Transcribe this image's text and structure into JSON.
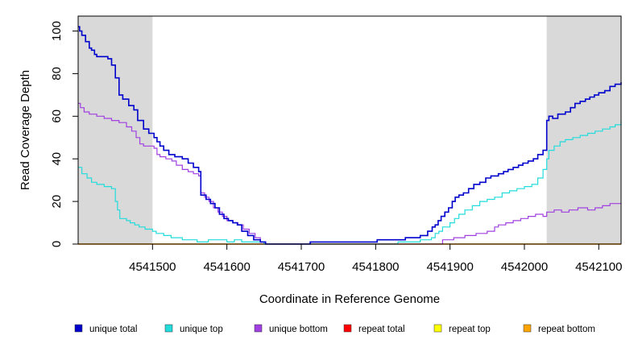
{
  "chart_data": {
    "type": "line",
    "title": "",
    "xlabel": "Coordinate in Reference Genome",
    "ylabel": "Read Coverage Depth",
    "xlim": [
      4541400,
      4542130
    ],
    "ylim": [
      0,
      107
    ],
    "x_ticks": [
      4541500,
      4541600,
      4541700,
      4541800,
      4541900,
      4542000,
      4542100
    ],
    "y_ticks": [
      0,
      20,
      40,
      60,
      80,
      100
    ],
    "shaded_regions": [
      [
        4541400,
        4541500
      ],
      [
        4542030,
        4542130
      ]
    ],
    "shade_color": "#d9d9d9",
    "legend_position": "bottom",
    "series": [
      {
        "name": "unique total",
        "color": "#0000cd",
        "points": [
          [
            4541400,
            102
          ],
          [
            4541402,
            100
          ],
          [
            4541405,
            98
          ],
          [
            4541410,
            95
          ],
          [
            4541415,
            92
          ],
          [
            4541418,
            91
          ],
          [
            4541422,
            89
          ],
          [
            4541425,
            88
          ],
          [
            4541440,
            87
          ],
          [
            4541445,
            84
          ],
          [
            4541450,
            78
          ],
          [
            4541455,
            70
          ],
          [
            4541460,
            68
          ],
          [
            4541468,
            65
          ],
          [
            4541475,
            63
          ],
          [
            4541480,
            58
          ],
          [
            4541488,
            54
          ],
          [
            4541495,
            52
          ],
          [
            4541502,
            50
          ],
          [
            4541506,
            48
          ],
          [
            4541510,
            46
          ],
          [
            4541515,
            44
          ],
          [
            4541522,
            42
          ],
          [
            4541530,
            41
          ],
          [
            4541540,
            40
          ],
          [
            4541548,
            38
          ],
          [
            4541555,
            36
          ],
          [
            4541562,
            34
          ],
          [
            4541565,
            23
          ],
          [
            4541572,
            21
          ],
          [
            4541578,
            19
          ],
          [
            4541584,
            17
          ],
          [
            4541590,
            14
          ],
          [
            4541596,
            12
          ],
          [
            4541602,
            11
          ],
          [
            4541608,
            10
          ],
          [
            4541614,
            9
          ],
          [
            4541620,
            6
          ],
          [
            4541628,
            4
          ],
          [
            4541636,
            2
          ],
          [
            4541645,
            1
          ],
          [
            4541652,
            0
          ],
          [
            4541710,
            0
          ],
          [
            4541712,
            1
          ],
          [
            4541800,
            1
          ],
          [
            4541802,
            2
          ],
          [
            4541840,
            3
          ],
          [
            4541860,
            4
          ],
          [
            4541870,
            6
          ],
          [
            4541876,
            8
          ],
          [
            4541880,
            9
          ],
          [
            4541884,
            11
          ],
          [
            4541888,
            13
          ],
          [
            4541893,
            15
          ],
          [
            4541898,
            17
          ],
          [
            4541903,
            20
          ],
          [
            4541907,
            22
          ],
          [
            4541912,
            23
          ],
          [
            4541918,
            24
          ],
          [
            4541925,
            26
          ],
          [
            4541932,
            28
          ],
          [
            4541940,
            29
          ],
          [
            4541948,
            31
          ],
          [
            4541955,
            32
          ],
          [
            4541965,
            33
          ],
          [
            4541972,
            34
          ],
          [
            4541978,
            35
          ],
          [
            4541985,
            36
          ],
          [
            4541992,
            37
          ],
          [
            4541998,
            38
          ],
          [
            4542005,
            39
          ],
          [
            4542012,
            40
          ],
          [
            4542018,
            42
          ],
          [
            4542025,
            44
          ],
          [
            4542030,
            58
          ],
          [
            4542033,
            60
          ],
          [
            4542038,
            59
          ],
          [
            4542045,
            61
          ],
          [
            4542055,
            62
          ],
          [
            4542062,
            64
          ],
          [
            4542068,
            66
          ],
          [
            4542075,
            67
          ],
          [
            4542082,
            68
          ],
          [
            4542088,
            69
          ],
          [
            4542094,
            70
          ],
          [
            4542100,
            71
          ],
          [
            4542108,
            72
          ],
          [
            4542115,
            74
          ],
          [
            4542122,
            75
          ],
          [
            4542130,
            76
          ]
        ]
      },
      {
        "name": "unique top",
        "color": "#22dcdc",
        "points": [
          [
            4541400,
            36
          ],
          [
            4541405,
            33
          ],
          [
            4541412,
            31
          ],
          [
            4541418,
            29
          ],
          [
            4541425,
            28
          ],
          [
            4541435,
            27
          ],
          [
            4541445,
            26
          ],
          [
            4541450,
            20
          ],
          [
            4541453,
            16
          ],
          [
            4541456,
            12
          ],
          [
            4541465,
            11
          ],
          [
            4541470,
            10
          ],
          [
            4541476,
            9
          ],
          [
            4541482,
            8
          ],
          [
            4541490,
            7
          ],
          [
            4541500,
            6
          ],
          [
            4541505,
            5
          ],
          [
            4541515,
            4
          ],
          [
            4541525,
            3
          ],
          [
            4541540,
            2
          ],
          [
            4541560,
            1
          ],
          [
            4541570,
            1
          ],
          [
            4541575,
            2
          ],
          [
            4541580,
            2
          ],
          [
            4541600,
            1
          ],
          [
            4541610,
            2
          ],
          [
            4541620,
            1
          ],
          [
            4541650,
            0
          ],
          [
            4541820,
            0
          ],
          [
            4541830,
            1
          ],
          [
            4541860,
            2
          ],
          [
            4541875,
            3
          ],
          [
            4541880,
            5
          ],
          [
            4541885,
            6
          ],
          [
            4541890,
            8
          ],
          [
            4541900,
            10
          ],
          [
            4541906,
            12
          ],
          [
            4541912,
            14
          ],
          [
            4541920,
            16
          ],
          [
            4541930,
            18
          ],
          [
            4541940,
            20
          ],
          [
            4541950,
            21
          ],
          [
            4541960,
            22
          ],
          [
            4541970,
            24
          ],
          [
            4541980,
            25
          ],
          [
            4541990,
            26
          ],
          [
            4542000,
            27
          ],
          [
            4542010,
            28
          ],
          [
            4542018,
            31
          ],
          [
            4542025,
            35
          ],
          [
            4542030,
            40
          ],
          [
            4542033,
            44
          ],
          [
            4542040,
            46
          ],
          [
            4542048,
            48
          ],
          [
            4542055,
            49
          ],
          [
            4542065,
            50
          ],
          [
            4542075,
            51
          ],
          [
            4542085,
            52
          ],
          [
            4542095,
            53
          ],
          [
            4542105,
            54
          ],
          [
            4542115,
            55
          ],
          [
            4542122,
            56
          ],
          [
            4542130,
            58
          ]
        ]
      },
      {
        "name": "unique bottom",
        "color": "#a040e0",
        "points": [
          [
            4541400,
            66
          ],
          [
            4541403,
            64
          ],
          [
            4541408,
            62
          ],
          [
            4541415,
            61
          ],
          [
            4541425,
            60
          ],
          [
            4541435,
            59
          ],
          [
            4541445,
            58
          ],
          [
            4541455,
            57
          ],
          [
            4541465,
            55
          ],
          [
            4541472,
            53
          ],
          [
            4541478,
            50
          ],
          [
            4541483,
            47
          ],
          [
            4541488,
            46
          ],
          [
            4541496,
            46
          ],
          [
            4541502,
            45
          ],
          [
            4541506,
            42
          ],
          [
            4541510,
            41
          ],
          [
            4541518,
            40
          ],
          [
            4541526,
            39
          ],
          [
            4541532,
            37
          ],
          [
            4541540,
            35
          ],
          [
            4541548,
            34
          ],
          [
            4541555,
            33
          ],
          [
            4541562,
            32
          ],
          [
            4541565,
            24
          ],
          [
            4541570,
            22
          ],
          [
            4541576,
            20
          ],
          [
            4541582,
            17
          ],
          [
            4541588,
            15
          ],
          [
            4541594,
            13
          ],
          [
            4541600,
            11
          ],
          [
            4541608,
            10
          ],
          [
            4541615,
            9
          ],
          [
            4541622,
            7
          ],
          [
            4541630,
            5
          ],
          [
            4541638,
            3
          ],
          [
            4541645,
            1
          ],
          [
            4541652,
            0
          ],
          [
            4541880,
            0
          ],
          [
            4541890,
            2
          ],
          [
            4541905,
            3
          ],
          [
            4541920,
            4
          ],
          [
            4541935,
            5
          ],
          [
            4541950,
            6
          ],
          [
            4541960,
            8
          ],
          [
            4541965,
            9
          ],
          [
            4541975,
            10
          ],
          [
            4541985,
            11
          ],
          [
            4541995,
            12
          ],
          [
            4542005,
            13
          ],
          [
            4542015,
            14
          ],
          [
            4542025,
            13
          ],
          [
            4542030,
            15
          ],
          [
            4542040,
            16
          ],
          [
            4542050,
            15
          ],
          [
            4542060,
            16
          ],
          [
            4542072,
            17
          ],
          [
            4542085,
            16
          ],
          [
            4542095,
            17
          ],
          [
            4542105,
            18
          ],
          [
            4542115,
            19
          ],
          [
            4542130,
            19
          ]
        ]
      },
      {
        "name": "repeat total",
        "color": "#ff0000",
        "points": [
          [
            4541400,
            0
          ],
          [
            4542130,
            0
          ]
        ]
      },
      {
        "name": "repeat top",
        "color": "#ffff00",
        "points": [
          [
            4541400,
            0
          ],
          [
            4542130,
            0
          ]
        ]
      },
      {
        "name": "repeat bottom",
        "color": "#ffa500",
        "points": [
          [
            4541400,
            0
          ],
          [
            4542130,
            0
          ]
        ]
      }
    ]
  }
}
